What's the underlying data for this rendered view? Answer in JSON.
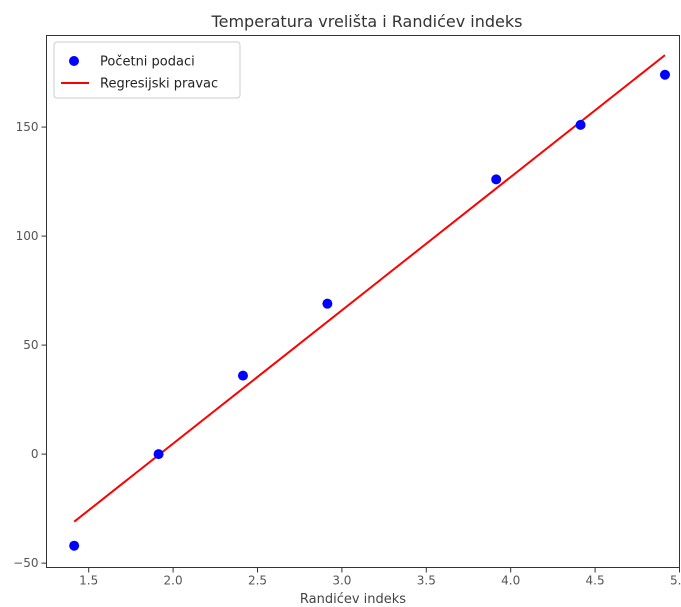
{
  "chart_data": {
    "type": "scatter",
    "title": "Temperatura vrelišta i Randićev indeks",
    "xlabel": "Randićev indeks",
    "ylabel": "",
    "xlim": [
      1.25,
      5.0
    ],
    "ylim": [
      -52,
      192
    ],
    "xticks": [
      1.5,
      2.0,
      2.5,
      3.0,
      3.5,
      4.0,
      4.5,
      5.0
    ],
    "xtick_labels": [
      "1.5",
      "2.0",
      "2.5",
      "3.0",
      "3.5",
      "4.0",
      "4.5",
      "5.0"
    ],
    "yticks": [
      -50,
      0,
      50,
      100,
      150
    ],
    "ytick_labels": [
      "−50",
      "0",
      "50",
      "100",
      "150"
    ],
    "grid": false,
    "legend_position": "top-left",
    "series": [
      {
        "name": "Početni podaci",
        "kind": "scatter",
        "color": "#0000ff",
        "x": [
          1.414,
          1.914,
          2.414,
          2.914,
          3.914,
          4.414,
          4.914
        ],
        "y": [
          -42,
          0,
          36,
          69,
          126,
          151,
          174
        ]
      },
      {
        "name": "Regresijski pravac",
        "kind": "line",
        "color": "#ff0000",
        "x": [
          1.414,
          4.914
        ],
        "y": [
          -31,
          183
        ]
      }
    ]
  }
}
